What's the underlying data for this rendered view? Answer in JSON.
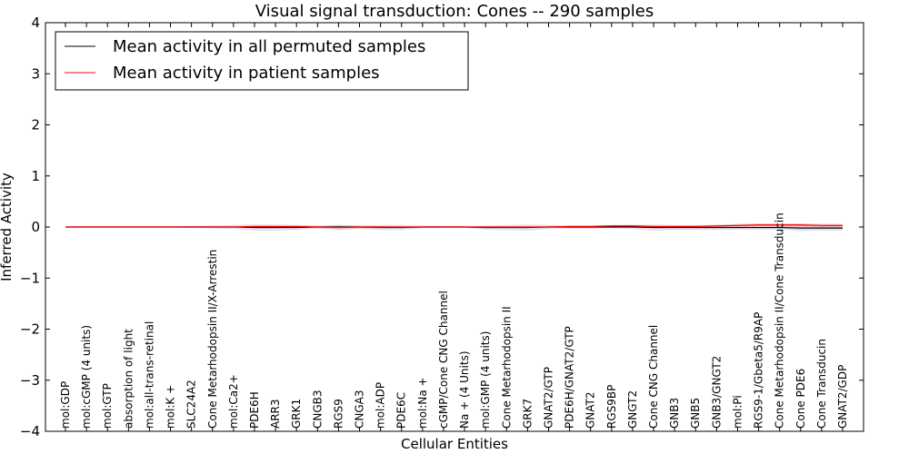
{
  "chart_data": {
    "type": "line",
    "title": "Visual signal transduction: Cones -- 290 samples",
    "xlabel": "Cellular Entities",
    "ylabel": "Inferred Activity",
    "ylim": [
      -4,
      4
    ],
    "yticks": [
      -4,
      -3,
      -2,
      -1,
      0,
      1,
      2,
      3,
      4
    ],
    "ytick_labels": [
      "−4",
      "−3",
      "−2",
      "−1",
      "0",
      "1",
      "2",
      "3",
      "4"
    ],
    "grid": false,
    "legend_position": "top-left",
    "categories": [
      "mol:GDP",
      "mol:cGMP (4 units)",
      "mol:GTP",
      "absorption of light",
      "mol:all-trans-retinal",
      "mol:K +",
      "SLC24A2",
      "Cone Metarhodopsin II/X-Arrestin",
      "mol:Ca2+",
      "PDE6H",
      "ARR3",
      "GRK1",
      "CNGB3",
      "RGS9",
      "CNGA3",
      "mol:ADP",
      "PDE6C",
      "mol:Na +",
      "cGMP/Cone CNG Channel",
      "Na + (4 Units)",
      "mol:GMP (4 units)",
      "Cone Metarhodopsin II",
      "GRK7",
      "GNAT2/GTP",
      "PDE6H/GNAT2/GTP",
      "GNAT2",
      "RGS9BP",
      "GNGT2",
      "Cone CNG Channel",
      "GNB3",
      "GNB5",
      "GNB3/GNGT2",
      "mol:Pi",
      "RGS9-1/Gbeta5/R9AP",
      "Cone Metarhodopsin II/Cone Transducin",
      "Cone PDE6",
      "Cone Transducin",
      "GNAT2/GDP"
    ],
    "series": [
      {
        "name": "Mean activity in all permuted samples",
        "color": "#000000",
        "values": [
          0,
          0,
          0,
          0,
          0,
          0,
          0,
          0,
          0,
          -0.01,
          -0.01,
          -0.01,
          0,
          0,
          0,
          -0.01,
          -0.01,
          0,
          0,
          0,
          -0.01,
          -0.01,
          -0.01,
          0,
          0,
          0,
          0,
          0,
          -0.01,
          -0.01,
          -0.01,
          -0.01,
          -0.01,
          -0.01,
          -0.01,
          -0.02,
          -0.02,
          -0.02
        ]
      },
      {
        "name": "Mean activity in patient samples",
        "color": "#ff0000",
        "values": [
          0,
          0,
          0,
          0,
          0,
          0,
          0,
          0,
          0,
          0.01,
          0.01,
          0.01,
          0,
          -0.01,
          0,
          0,
          0,
          0,
          0,
          0,
          0,
          0,
          0,
          0,
          0.01,
          0.01,
          0.02,
          0.02,
          0.01,
          0.01,
          0.01,
          0.02,
          0.03,
          0.04,
          0.04,
          0.04,
          0.03,
          0.03
        ]
      }
    ],
    "bands": [
      {
        "series": "Mean activity in all permuted samples",
        "color": "#c8c8d8",
        "halfwidth": [
          0.01,
          0.01,
          0.01,
          0.01,
          0.01,
          0.01,
          0.02,
          0.03,
          0.04,
          0.06,
          0.06,
          0.05,
          0.03,
          0.03,
          0.03,
          0.05,
          0.05,
          0.03,
          0.02,
          0.02,
          0.04,
          0.05,
          0.06,
          0.04,
          0.03,
          0.03,
          0.03,
          0.04,
          0.06,
          0.05,
          0.05,
          0.05,
          0.04,
          0.04,
          0.04,
          0.06,
          0.05,
          0.05
        ]
      },
      {
        "series": "Mean activity in patient samples",
        "color": "#f0a0a0",
        "halfwidth": [
          0.01,
          0.01,
          0.01,
          0.01,
          0.01,
          0.01,
          0.01,
          0.01,
          0.01,
          0.02,
          0.02,
          0.02,
          0.02,
          0.05,
          0.03,
          0.02,
          0.01,
          0.01,
          0.01,
          0.01,
          0.01,
          0.01,
          0.01,
          0.01,
          0.02,
          0.02,
          0.02,
          0.02,
          0.02,
          0.02,
          0.02,
          0.02,
          0.03,
          0.03,
          0.03,
          0.03,
          0.03,
          0.03
        ]
      }
    ]
  }
}
